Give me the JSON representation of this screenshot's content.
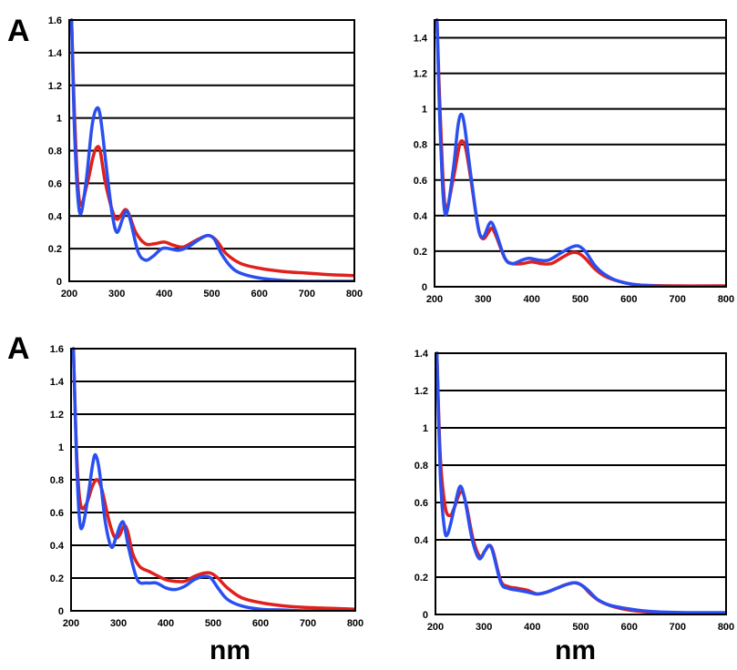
{
  "panel_letters": {
    "top_left": "A",
    "bottom_left": "A"
  },
  "x_unit_label": "nm",
  "colors": {
    "series_red": "#e0201c",
    "series_blue": "#2a4ff0"
  },
  "chart_data": [
    {
      "type": "line",
      "xlim": [
        200,
        800
      ],
      "ylim": [
        0,
        1.6
      ],
      "x_ticks": [
        "200",
        "300",
        "400",
        "500",
        "600",
        "700",
        "800"
      ],
      "y_ticks": [
        "0",
        "0.2",
        "0.4",
        "0.6",
        "0.8",
        "1",
        "1.2",
        "1.4",
        "1.6"
      ],
      "grid": "horizontal",
      "series": [
        {
          "color": "#e0201c",
          "points": [
            [
              205,
              1.6
            ],
            [
              212,
              0.95
            ],
            [
              222,
              0.48
            ],
            [
              238,
              0.6
            ],
            [
              250,
              0.76
            ],
            [
              258,
              0.82
            ],
            [
              265,
              0.8
            ],
            [
              275,
              0.62
            ],
            [
              290,
              0.44
            ],
            [
              300,
              0.38
            ],
            [
              310,
              0.41
            ],
            [
              318,
              0.44
            ],
            [
              326,
              0.41
            ],
            [
              340,
              0.3
            ],
            [
              360,
              0.23
            ],
            [
              380,
              0.23
            ],
            [
              400,
              0.24
            ],
            [
              420,
              0.22
            ],
            [
              440,
              0.21
            ],
            [
              460,
              0.24
            ],
            [
              480,
              0.27
            ],
            [
              495,
              0.28
            ],
            [
              510,
              0.25
            ],
            [
              530,
              0.17
            ],
            [
              560,
              0.11
            ],
            [
              600,
              0.08
            ],
            [
              650,
              0.06
            ],
            [
              700,
              0.05
            ],
            [
              750,
              0.04
            ],
            [
              800,
              0.035
            ]
          ]
        },
        {
          "color": "#2a4ff0",
          "points": [
            [
              205,
              1.6
            ],
            [
              212,
              0.85
            ],
            [
              222,
              0.42
            ],
            [
              235,
              0.6
            ],
            [
              248,
              0.95
            ],
            [
              258,
              1.06
            ],
            [
              266,
              1.0
            ],
            [
              278,
              0.7
            ],
            [
              290,
              0.42
            ],
            [
              300,
              0.3
            ],
            [
              312,
              0.38
            ],
            [
              320,
              0.43
            ],
            [
              328,
              0.38
            ],
            [
              345,
              0.18
            ],
            [
              360,
              0.13
            ],
            [
              375,
              0.15
            ],
            [
              395,
              0.2
            ],
            [
              410,
              0.2
            ],
            [
              430,
              0.19
            ],
            [
              450,
              0.21
            ],
            [
              470,
              0.25
            ],
            [
              490,
              0.28
            ],
            [
              505,
              0.26
            ],
            [
              520,
              0.17
            ],
            [
              540,
              0.09
            ],
            [
              560,
              0.05
            ],
            [
              600,
              0.02
            ],
            [
              650,
              0.005
            ],
            [
              700,
              0.0
            ],
            [
              800,
              0.0
            ]
          ]
        }
      ]
    },
    {
      "type": "line",
      "xlim": [
        200,
        800
      ],
      "ylim": [
        0,
        1.5
      ],
      "x_ticks": [
        "200",
        "300",
        "400",
        "500",
        "600",
        "700",
        "800"
      ],
      "y_ticks": [
        "0",
        "0.2",
        "0.4",
        "0.6",
        "0.8",
        "1",
        "1.2",
        "1.4"
      ],
      "grid": "horizontal",
      "series": [
        {
          "color": "#e0201c",
          "points": [
            [
              205,
              1.5
            ],
            [
              212,
              0.95
            ],
            [
              222,
              0.45
            ],
            [
              238,
              0.6
            ],
            [
              250,
              0.78
            ],
            [
              256,
              0.82
            ],
            [
              264,
              0.78
            ],
            [
              275,
              0.6
            ],
            [
              290,
              0.33
            ],
            [
              300,
              0.27
            ],
            [
              312,
              0.31
            ],
            [
              318,
              0.33
            ],
            [
              326,
              0.29
            ],
            [
              345,
              0.16
            ],
            [
              360,
              0.13
            ],
            [
              380,
              0.13
            ],
            [
              400,
              0.14
            ],
            [
              420,
              0.13
            ],
            [
              440,
              0.13
            ],
            [
              460,
              0.16
            ],
            [
              480,
              0.19
            ],
            [
              495,
              0.19
            ],
            [
              510,
              0.16
            ],
            [
              530,
              0.1
            ],
            [
              550,
              0.06
            ],
            [
              580,
              0.03
            ],
            [
              620,
              0.01
            ],
            [
              700,
              0.005
            ],
            [
              800,
              0.005
            ]
          ]
        },
        {
          "color": "#2a4ff0",
          "points": [
            [
              205,
              1.5
            ],
            [
              212,
              0.85
            ],
            [
              222,
              0.41
            ],
            [
              238,
              0.65
            ],
            [
              248,
              0.9
            ],
            [
              255,
              0.97
            ],
            [
              262,
              0.9
            ],
            [
              275,
              0.62
            ],
            [
              290,
              0.33
            ],
            [
              300,
              0.28
            ],
            [
              312,
              0.35
            ],
            [
              318,
              0.36
            ],
            [
              326,
              0.31
            ],
            [
              345,
              0.16
            ],
            [
              360,
              0.13
            ],
            [
              380,
              0.15
            ],
            [
              395,
              0.16
            ],
            [
              415,
              0.15
            ],
            [
              435,
              0.15
            ],
            [
              460,
              0.19
            ],
            [
              480,
              0.22
            ],
            [
              495,
              0.23
            ],
            [
              510,
              0.2
            ],
            [
              530,
              0.12
            ],
            [
              550,
              0.07
            ],
            [
              580,
              0.03
            ],
            [
              620,
              0.01
            ],
            [
              700,
              0.0
            ],
            [
              800,
              0.0
            ]
          ]
        }
      ]
    },
    {
      "type": "line",
      "xlim": [
        200,
        800
      ],
      "ylim": [
        0,
        1.6
      ],
      "x_ticks": [
        "200",
        "300",
        "400",
        "500",
        "600",
        "700",
        "800"
      ],
      "y_ticks": [
        "0",
        "0.2",
        "0.4",
        "0.6",
        "0.8",
        "1",
        "1.2",
        "1.4",
        "1.6"
      ],
      "grid": "horizontal",
      "series": [
        {
          "color": "#e0201c",
          "points": [
            [
              205,
              1.6
            ],
            [
              212,
              0.95
            ],
            [
              220,
              0.65
            ],
            [
              232,
              0.65
            ],
            [
              245,
              0.76
            ],
            [
              255,
              0.8
            ],
            [
              265,
              0.74
            ],
            [
              280,
              0.55
            ],
            [
              292,
              0.45
            ],
            [
              302,
              0.46
            ],
            [
              312,
              0.52
            ],
            [
              320,
              0.48
            ],
            [
              330,
              0.35
            ],
            [
              345,
              0.27
            ],
            [
              365,
              0.24
            ],
            [
              385,
              0.21
            ],
            [
              400,
              0.19
            ],
            [
              420,
              0.18
            ],
            [
              440,
              0.18
            ],
            [
              460,
              0.21
            ],
            [
              480,
              0.23
            ],
            [
              495,
              0.23
            ],
            [
              510,
              0.2
            ],
            [
              530,
              0.14
            ],
            [
              560,
              0.08
            ],
            [
              600,
              0.05
            ],
            [
              650,
              0.03
            ],
            [
              700,
              0.02
            ],
            [
              750,
              0.015
            ],
            [
              800,
              0.01
            ]
          ]
        },
        {
          "color": "#2a4ff0",
          "points": [
            [
              205,
              1.6
            ],
            [
              212,
              0.9
            ],
            [
              218,
              0.55
            ],
            [
              225,
              0.52
            ],
            [
              236,
              0.7
            ],
            [
              246,
              0.9
            ],
            [
              252,
              0.95
            ],
            [
              260,
              0.85
            ],
            [
              272,
              0.55
            ],
            [
              285,
              0.39
            ],
            [
              295,
              0.45
            ],
            [
              305,
              0.53
            ],
            [
              312,
              0.53
            ],
            [
              322,
              0.38
            ],
            [
              340,
              0.19
            ],
            [
              360,
              0.17
            ],
            [
              380,
              0.17
            ],
            [
              400,
              0.14
            ],
            [
              420,
              0.13
            ],
            [
              440,
              0.15
            ],
            [
              460,
              0.19
            ],
            [
              480,
              0.21
            ],
            [
              495,
              0.2
            ],
            [
              510,
              0.14
            ],
            [
              530,
              0.07
            ],
            [
              560,
              0.03
            ],
            [
              600,
              0.01
            ],
            [
              650,
              0.005
            ],
            [
              700,
              0.0
            ],
            [
              800,
              0.0
            ]
          ]
        }
      ]
    },
    {
      "type": "line",
      "xlim": [
        200,
        800
      ],
      "ylim": [
        0,
        1.4
      ],
      "x_ticks": [
        "200",
        "300",
        "400",
        "500",
        "600",
        "700",
        "800"
      ],
      "y_ticks": [
        "0",
        "0.2",
        "0.4",
        "0.6",
        "0.8",
        "1",
        "1.2",
        "1.4"
      ],
      "grid": "horizontal",
      "series": [
        {
          "color": "#e0201c",
          "points": [
            [
              203,
              1.4
            ],
            [
              210,
              0.85
            ],
            [
              220,
              0.58
            ],
            [
              230,
              0.53
            ],
            [
              240,
              0.58
            ],
            [
              250,
              0.65
            ],
            [
              257,
              0.65
            ],
            [
              265,
              0.57
            ],
            [
              278,
              0.4
            ],
            [
              292,
              0.31
            ],
            [
              302,
              0.34
            ],
            [
              312,
              0.37
            ],
            [
              320,
              0.33
            ],
            [
              335,
              0.18
            ],
            [
              350,
              0.15
            ],
            [
              370,
              0.14
            ],
            [
              390,
              0.13
            ],
            [
              410,
              0.11
            ],
            [
              430,
              0.12
            ],
            [
              450,
              0.14
            ],
            [
              470,
              0.16
            ],
            [
              490,
              0.17
            ],
            [
              505,
              0.15
            ],
            [
              520,
              0.11
            ],
            [
              540,
              0.07
            ],
            [
              570,
              0.04
            ],
            [
              610,
              0.02
            ],
            [
              660,
              0.01
            ],
            [
              720,
              0.005
            ],
            [
              800,
              0.005
            ]
          ]
        },
        {
          "color": "#2a4ff0",
          "points": [
            [
              203,
              1.4
            ],
            [
              210,
              0.75
            ],
            [
              218,
              0.47
            ],
            [
              225,
              0.43
            ],
            [
              238,
              0.56
            ],
            [
              248,
              0.67
            ],
            [
              254,
              0.68
            ],
            [
              262,
              0.6
            ],
            [
              276,
              0.4
            ],
            [
              290,
              0.3
            ],
            [
              302,
              0.34
            ],
            [
              310,
              0.37
            ],
            [
              318,
              0.34
            ],
            [
              335,
              0.17
            ],
            [
              350,
              0.14
            ],
            [
              370,
              0.13
            ],
            [
              390,
              0.12
            ],
            [
              410,
              0.11
            ],
            [
              430,
              0.12
            ],
            [
              450,
              0.14
            ],
            [
              470,
              0.16
            ],
            [
              485,
              0.17
            ],
            [
              500,
              0.16
            ],
            [
              515,
              0.13
            ],
            [
              535,
              0.08
            ],
            [
              560,
              0.05
            ],
            [
              600,
              0.03
            ],
            [
              650,
              0.015
            ],
            [
              720,
              0.01
            ],
            [
              800,
              0.01
            ]
          ]
        }
      ]
    }
  ]
}
